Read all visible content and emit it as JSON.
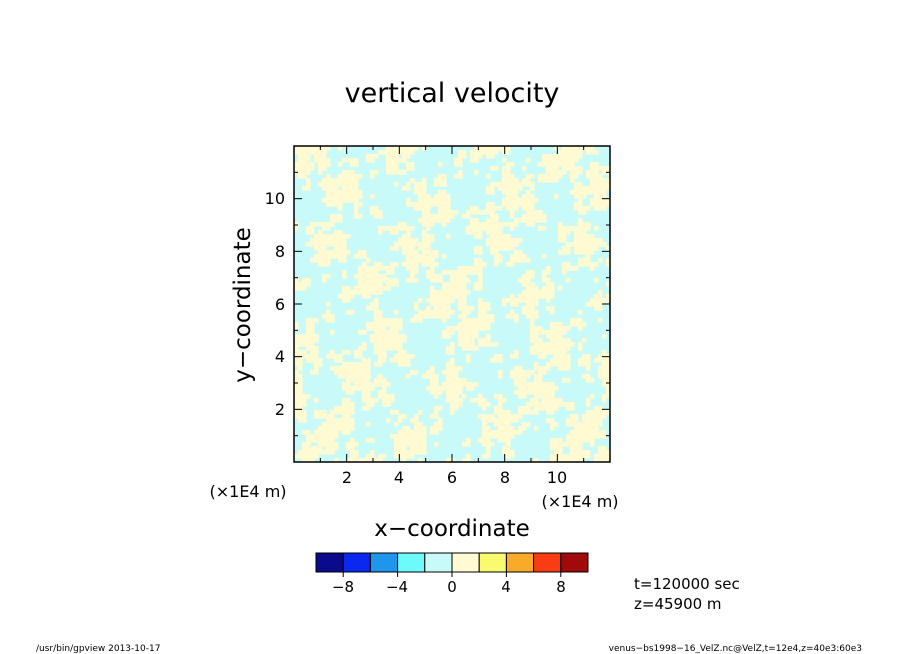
{
  "chart_data": {
    "type": "heatmap",
    "title": "vertical velocity",
    "xlabel": "x−coordinate",
    "ylabel": "y−coordinate",
    "x_unit_label": "(×1E4 m)",
    "y_unit_label": "(×1E4 m)",
    "xlim": [
      0,
      12
    ],
    "ylim": [
      0,
      12
    ],
    "xticks": [
      2,
      4,
      6,
      8,
      10
    ],
    "yticks": [
      2,
      4,
      6,
      8,
      10
    ],
    "x_tick_labels": [
      "2",
      "4",
      "6",
      "8",
      "10"
    ],
    "y_tick_labels": [
      "2",
      "4",
      "6",
      "8",
      "10"
    ],
    "field_description_values": {
      "min_shown": -2,
      "max_shown": 2
    },
    "colorbar": {
      "boundaries": [
        -10,
        -8,
        -6,
        -4,
        -2,
        0,
        2,
        4,
        6,
        8,
        10
      ],
      "colors": [
        "#0a0a8c",
        "#0a28f0",
        "#1e96ec",
        "#6cfafa",
        "#c8fafa",
        "#fffad2",
        "#fafa6e",
        "#f8aa28",
        "#fa3c14",
        "#a00a0a"
      ],
      "tick_values": [
        -8,
        -4,
        0,
        4,
        8
      ],
      "tick_labels": [
        "−8",
        "−4",
        "0",
        "4",
        "8"
      ]
    },
    "info_lines": [
      "t=120000 sec",
      "z=45900 m"
    ]
  },
  "footer": {
    "left": "/usr/bin/gpview   2013-10-17",
    "right": "venus−bs1998−16_VelZ.nc@VelZ,t=12e4,z=40e3:60e3"
  }
}
